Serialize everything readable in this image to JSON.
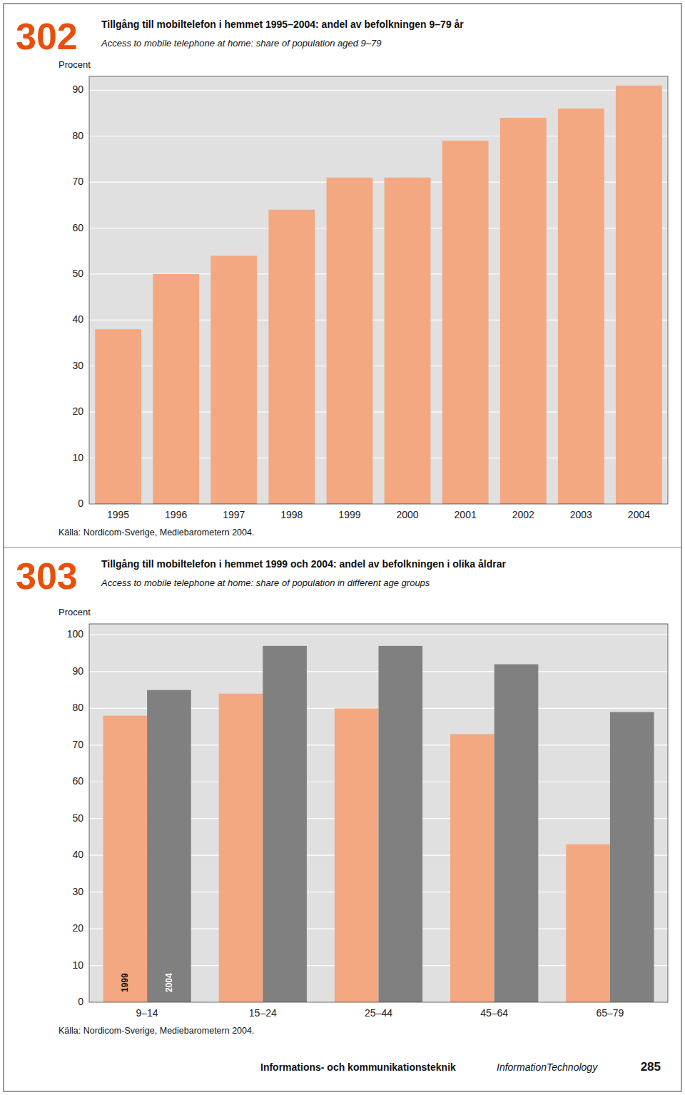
{
  "chart_data": [
    {
      "type": "bar",
      "number": "302",
      "title": "Tillgång till mobiltelefon i hemmet 1995–2004: andel av befolkningen 9–79 år",
      "subtitle": "Access to mobile telephone at home: share of population aged 9–79",
      "y_label": "Procent",
      "source": "Källa: Nordicom-Sverige, Mediebarometern 2004.",
      "categories": [
        "1995",
        "1996",
        "1997",
        "1998",
        "1999",
        "2000",
        "2001",
        "2002",
        "2003",
        "2004"
      ],
      "values": [
        38,
        50,
        54,
        64,
        71,
        71,
        79,
        84,
        86,
        91
      ],
      "color": "#F4A882",
      "ylim": [
        0,
        93
      ],
      "yticks": [
        0,
        10,
        20,
        30,
        40,
        50,
        60,
        70,
        80,
        90
      ],
      "grid": true
    },
    {
      "type": "bar",
      "number": "303",
      "title": "Tillgång till mobiltelefon i hemmet 1999 och 2004: andel av befolkningen i olika åldrar",
      "subtitle": "Access to mobile telephone at home: share of population in different age groups",
      "y_label": "Procent",
      "source": "Källa: Nordicom-Sverige, Mediebarometern 2004.",
      "categories": [
        "9–14",
        "15–24",
        "25–44",
        "45–64",
        "65–79"
      ],
      "series": [
        {
          "name": "1999",
          "color": "#F4A882",
          "values": [
            78,
            84,
            80,
            73,
            43
          ]
        },
        {
          "name": "2004",
          "color": "#808080",
          "values": [
            85,
            97,
            97,
            92,
            79
          ]
        }
      ],
      "ylim": [
        0,
        103
      ],
      "yticks": [
        0,
        10,
        20,
        30,
        40,
        50,
        60,
        70,
        80,
        90,
        100
      ],
      "grid": true
    }
  ],
  "footer": [
    "Informations- och kommunikationsteknik",
    "InformationTechnology"
  ],
  "page_number": "285"
}
